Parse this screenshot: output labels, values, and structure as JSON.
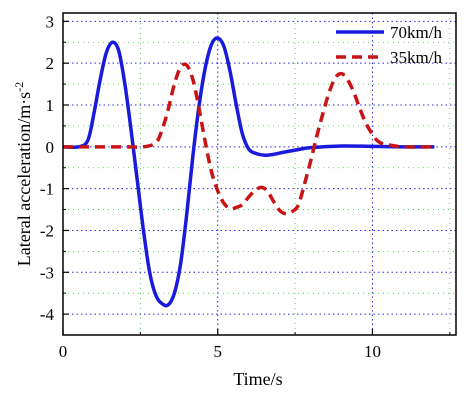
{
  "chart_data": {
    "type": "line",
    "title": "",
    "xlabel": "Time/s",
    "ylabel": "Lateral acceleration/m·s",
    "ylabel_superscript": "-2",
    "xlim": [
      0,
      12.7
    ],
    "ylim": [
      -4.5,
      3.2
    ],
    "x_ticks": [
      0,
      5,
      10
    ],
    "y_ticks": [
      -4,
      -3,
      -2,
      -1,
      0,
      1,
      2,
      3
    ],
    "grid": true,
    "legend_position": "top-right",
    "series": [
      {
        "name": "70km/h",
        "color": "#1a1adb",
        "style": "solid",
        "x": [
          0,
          0.5,
          0.8,
          1.0,
          1.2,
          1.4,
          1.6,
          1.8,
          2.0,
          2.2,
          2.4,
          2.6,
          2.8,
          3.0,
          3.2,
          3.4,
          3.6,
          3.8,
          4.0,
          4.2,
          4.4,
          4.6,
          4.8,
          5.0,
          5.2,
          5.4,
          5.6,
          5.8,
          6.0,
          6.2,
          6.5,
          6.8,
          7.0,
          7.5,
          8.0,
          9.0,
          10.0,
          11.0,
          12.0
        ],
        "y": [
          0,
          0,
          0.15,
          0.8,
          1.6,
          2.25,
          2.5,
          2.3,
          1.5,
          0.4,
          -0.8,
          -2.0,
          -3.0,
          -3.55,
          -3.75,
          -3.78,
          -3.5,
          -2.8,
          -1.6,
          -0.2,
          1.0,
          1.9,
          2.45,
          2.6,
          2.4,
          1.8,
          1.0,
          0.3,
          -0.05,
          -0.15,
          -0.2,
          -0.18,
          -0.15,
          -0.08,
          -0.02,
          0.02,
          0.01,
          0,
          0
        ]
      },
      {
        "name": "35km/h",
        "color": "#c81414",
        "style": "dashed",
        "x": [
          0,
          1.0,
          2.0,
          2.6,
          3.0,
          3.2,
          3.4,
          3.6,
          3.8,
          4.0,
          4.2,
          4.4,
          4.6,
          4.8,
          5.0,
          5.2,
          5.4,
          5.6,
          5.8,
          6.0,
          6.2,
          6.4,
          6.6,
          6.8,
          7.0,
          7.2,
          7.4,
          7.6,
          7.8,
          8.0,
          8.2,
          8.4,
          8.6,
          8.8,
          9.0,
          9.2,
          9.4,
          9.6,
          9.8,
          10.0,
          10.2,
          10.5,
          11.0,
          12.0
        ],
        "y": [
          0,
          0,
          0,
          0,
          0.1,
          0.4,
          0.9,
          1.5,
          1.9,
          1.95,
          1.6,
          0.9,
          0.1,
          -0.6,
          -1.05,
          -1.35,
          -1.48,
          -1.45,
          -1.38,
          -1.2,
          -1.05,
          -0.97,
          -1.05,
          -1.3,
          -1.52,
          -1.6,
          -1.55,
          -1.4,
          -0.9,
          -0.35,
          0.25,
          0.8,
          1.3,
          1.65,
          1.75,
          1.6,
          1.3,
          0.9,
          0.55,
          0.3,
          0.12,
          0.05,
          0,
          0
        ]
      }
    ]
  }
}
